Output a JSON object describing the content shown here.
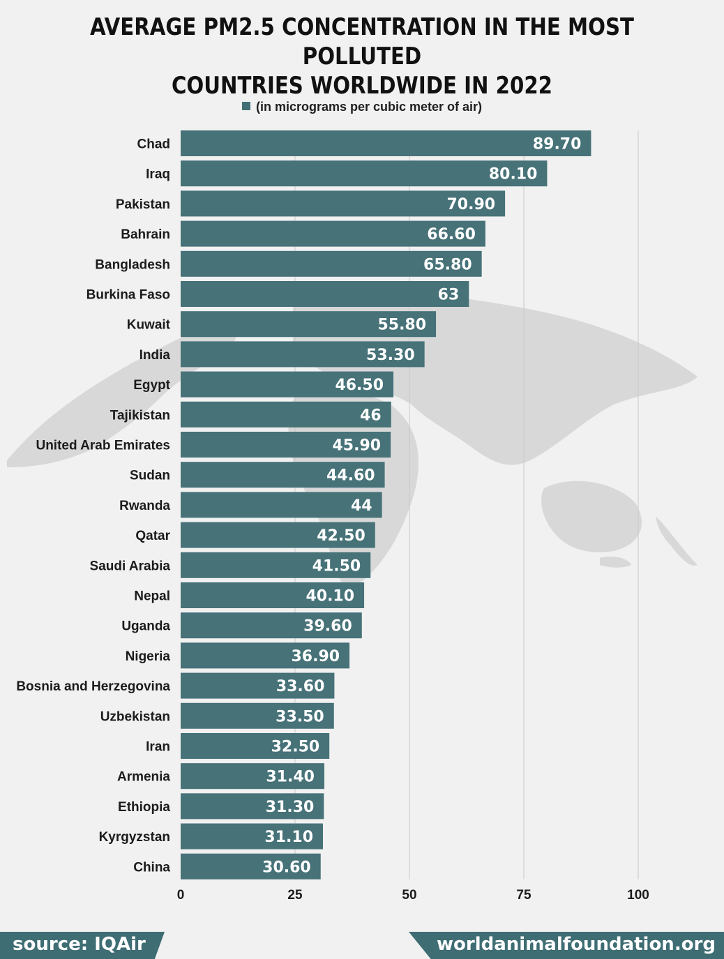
{
  "header": {
    "title_line1": "AVERAGE PM2.5 CONCENTRATION IN THE MOST POLLUTED",
    "title_line2": "COUNTRIES WORLDWIDE IN 2022"
  },
  "legend": {
    "label": "(in micrograms per cubic meter of air)"
  },
  "footer": {
    "source": "source: IQAir",
    "site": "worldanimalfoundation.org"
  },
  "colors": {
    "bar": "#426f75",
    "background": "#f1f1f1",
    "grid": "#c9c9c9",
    "map": "#d6d6d6"
  },
  "chart_data": {
    "type": "bar",
    "orientation": "horizontal",
    "title": "AVERAGE PM2.5 CONCENTRATION IN THE MOST POLLUTED COUNTRIES WORLDWIDE IN 2022",
    "categories": [
      "Chad",
      "Iraq",
      "Pakistan",
      "Bahrain",
      "Bangladesh",
      "Burkina Faso",
      "Kuwait",
      "India",
      "Egypt",
      "Tajikistan",
      "United Arab Emirates",
      "Sudan",
      "Rwanda",
      "Qatar",
      "Saudi Arabia",
      "Nepal",
      "Uganda",
      "Nigeria",
      "Bosnia and Herzegovina",
      "Uzbekistan",
      "Iran",
      "Armenia",
      "Ethiopia",
      "Kyrgyzstan",
      "China"
    ],
    "values": [
      89.7,
      80.1,
      70.9,
      66.6,
      65.8,
      63,
      55.8,
      53.3,
      46.5,
      46,
      45.9,
      44.6,
      44,
      42.5,
      41.5,
      40.1,
      39.6,
      36.9,
      33.6,
      33.5,
      32.5,
      31.4,
      31.3,
      31.1,
      30.6
    ],
    "value_labels": [
      "89.70",
      "80.10",
      "70.90",
      "66.60",
      "65.80",
      "63",
      "55.80",
      "53.30",
      "46.50",
      "46",
      "45.90",
      "44.60",
      "44",
      "42.50",
      "41.50",
      "40.10",
      "39.60",
      "36.90",
      "33.60",
      "33.50",
      "32.50",
      "31.40",
      "31.30",
      "31.10",
      "30.60"
    ],
    "series": [
      {
        "name": "(in micrograms per cubic meter of air)"
      }
    ],
    "xlim": [
      0,
      100
    ],
    "xticks": [
      "0",
      "25",
      "50",
      "75",
      "100"
    ],
    "grid": true,
    "legend_position": "top-center"
  }
}
